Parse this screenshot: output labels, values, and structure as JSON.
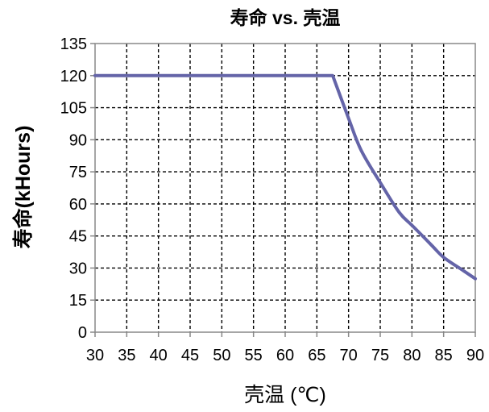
{
  "chart_data": {
    "type": "line",
    "title": "寿命 vs. 壳温",
    "xlabel": "壳温 (℃)",
    "ylabel": "寿命(kHours)",
    "xlim": [
      30,
      90
    ],
    "ylim": [
      0,
      135
    ],
    "xticks": [
      30,
      35,
      40,
      45,
      50,
      55,
      60,
      65,
      70,
      75,
      80,
      85,
      90
    ],
    "yticks": [
      0,
      15,
      30,
      45,
      60,
      75,
      90,
      105,
      120,
      135
    ],
    "grid": true,
    "series": [
      {
        "x": [
          30,
          67.5,
          70,
          72,
          75,
          78,
          80,
          83,
          85,
          88,
          90
        ],
        "y": [
          120,
          120,
          100,
          85,
          70,
          56,
          50,
          41,
          35,
          29,
          25
        ]
      }
    ]
  },
  "colors": {
    "line": "#6464a8",
    "grid": "#000000",
    "axis": "#888888",
    "text": "#000000"
  }
}
